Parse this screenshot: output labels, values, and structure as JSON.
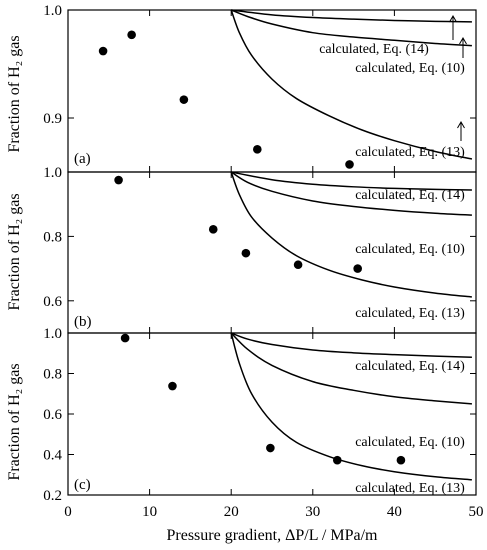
{
  "figure": {
    "xlabel": "Pressure gradient, ΔP/L / MPa/m",
    "ylabel": "Fraction of H₂ gas"
  },
  "chart_data": [
    {
      "type": "scatter",
      "panel_label": "(a)",
      "xlim": [
        0,
        50
      ],
      "ylim": [
        0.85,
        1.0
      ],
      "yticks": [
        "",
        "0.9",
        "1.0"
      ],
      "ytick_values": [
        0.85,
        0.9,
        1.0
      ],
      "xticks": [],
      "xtick_values": [
        0,
        10,
        20,
        30,
        40,
        50
      ],
      "points": [
        {
          "x": 4.3,
          "y": 0.962
        },
        {
          "x": 7.8,
          "y": 0.977
        },
        {
          "x": 14.2,
          "y": 0.917
        },
        {
          "x": 23.2,
          "y": 0.871
        },
        {
          "x": 34.5,
          "y": 0.857
        }
      ],
      "curves": [
        {
          "label": "calculated, Eq. (14)",
          "x": [
            20,
            25,
            30,
            35,
            40,
            45,
            49.5
          ],
          "y": [
            1.0,
            0.9955,
            0.993,
            0.9915,
            0.9903,
            0.9895,
            0.989
          ]
        },
        {
          "label": "calculated, Eq. (10)",
          "x": [
            20,
            22,
            25,
            30,
            35,
            40,
            45,
            49.5
          ],
          "y": [
            1.0,
            0.994,
            0.987,
            0.979,
            0.975,
            0.972,
            0.969,
            0.967
          ]
        },
        {
          "label": "calculated, Eq. (13)",
          "x": [
            20,
            21,
            22.5,
            25,
            28,
            32,
            36,
            40,
            45,
            49.5
          ],
          "y": [
            1.0,
            0.979,
            0.958,
            0.936,
            0.918,
            0.902,
            0.889,
            0.879,
            0.869,
            0.862
          ]
        }
      ]
    },
    {
      "type": "scatter",
      "panel_label": "(b)",
      "xlim": [
        0,
        50
      ],
      "ylim": [
        0.5,
        1.0
      ],
      "yticks": [
        "0.6",
        "0.8",
        "1.0"
      ],
      "ytick_values": [
        0.6,
        0.8,
        1.0
      ],
      "xticks": [],
      "xtick_values": [
        0,
        10,
        20,
        30,
        40,
        50
      ],
      "points": [
        {
          "x": 6.2,
          "y": 0.975
        },
        {
          "x": 17.8,
          "y": 0.822
        },
        {
          "x": 21.8,
          "y": 0.748
        },
        {
          "x": 28.2,
          "y": 0.712
        },
        {
          "x": 35.5,
          "y": 0.7
        }
      ],
      "curves": [
        {
          "label": "calculated, Eq. (14)",
          "x": [
            20,
            25,
            30,
            35,
            40,
            45,
            49.5
          ],
          "y": [
            1.0,
            0.976,
            0.962,
            0.954,
            0.949,
            0.946,
            0.944
          ]
        },
        {
          "label": "calculated, Eq. (10)",
          "x": [
            20,
            22,
            25,
            30,
            35,
            40,
            45,
            49.5
          ],
          "y": [
            1.0,
            0.968,
            0.94,
            0.91,
            0.893,
            0.881,
            0.872,
            0.866
          ]
        },
        {
          "label": "calculated, Eq. (13)",
          "x": [
            20,
            21,
            22.5,
            25,
            28,
            32,
            36,
            40,
            45,
            49.5
          ],
          "y": [
            1.0,
            0.93,
            0.86,
            0.795,
            0.74,
            0.695,
            0.665,
            0.643,
            0.624,
            0.612
          ]
        }
      ]
    },
    {
      "type": "scatter",
      "panel_label": "(c)",
      "xlim": [
        0,
        50
      ],
      "ylim": [
        0.2,
        1.0
      ],
      "yticks": [
        "0.2",
        "0.4",
        "0.6",
        "0.8",
        "1.0"
      ],
      "ytick_values": [
        0.2,
        0.4,
        0.6,
        0.8,
        1.0
      ],
      "xticks": [
        "0",
        "10",
        "20",
        "30",
        "40",
        "50"
      ],
      "xtick_values": [
        0,
        10,
        20,
        30,
        40,
        50
      ],
      "points": [
        {
          "x": 7.0,
          "y": 0.975
        },
        {
          "x": 12.8,
          "y": 0.738
        },
        {
          "x": 24.8,
          "y": 0.432
        },
        {
          "x": 33.0,
          "y": 0.372
        },
        {
          "x": 40.8,
          "y": 0.372
        }
      ],
      "curves": [
        {
          "label": "calculated, Eq. (14)",
          "x": [
            20,
            22,
            25,
            30,
            35,
            40,
            45,
            49.5
          ],
          "y": [
            1.0,
            0.97,
            0.943,
            0.916,
            0.902,
            0.893,
            0.886,
            0.88
          ]
        },
        {
          "label": "calculated, Eq. (10)",
          "x": [
            20,
            22,
            25,
            30,
            35,
            40,
            45,
            49.5
          ],
          "y": [
            1.0,
            0.92,
            0.84,
            0.76,
            0.717,
            0.685,
            0.665,
            0.65
          ]
        },
        {
          "label": "calculated, Eq. (13)",
          "x": [
            20,
            21,
            22.5,
            25,
            28,
            32,
            36,
            40,
            45,
            49.5
          ],
          "y": [
            1.0,
            0.85,
            0.7,
            0.56,
            0.46,
            0.39,
            0.345,
            0.315,
            0.29,
            0.275
          ]
        }
      ]
    }
  ]
}
